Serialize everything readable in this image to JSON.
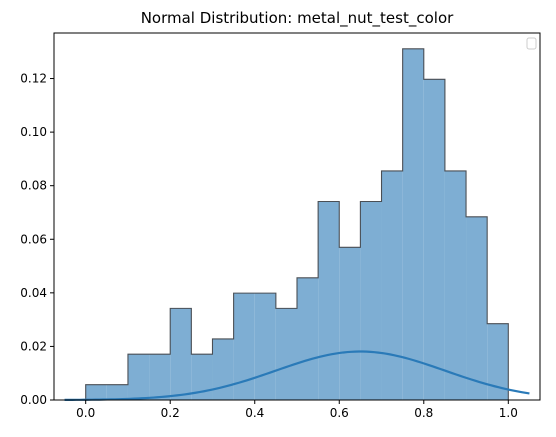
{
  "chart_data": {
    "type": "histogram",
    "title": "Normal Distribution: metal_nut_test_color",
    "xlabel": "",
    "ylabel": "",
    "xlim": [
      -0.075,
      1.075
    ],
    "ylim": [
      0,
      0.137
    ],
    "x_ticks": [
      "0.0",
      "0.2",
      "0.4",
      "0.6",
      "0.8",
      "1.0"
    ],
    "x_tick_values": [
      0.0,
      0.2,
      0.4,
      0.6,
      0.8,
      1.0
    ],
    "y_ticks": [
      "0.00",
      "0.02",
      "0.04",
      "0.06",
      "0.08",
      "0.10",
      "0.12"
    ],
    "y_tick_values": [
      0.0,
      0.02,
      0.04,
      0.06,
      0.08,
      0.1,
      0.12
    ],
    "histogram": {
      "bin_edges": [
        0.0,
        0.05,
        0.1,
        0.15,
        0.2,
        0.25,
        0.3,
        0.35,
        0.4,
        0.45,
        0.5,
        0.55,
        0.6,
        0.65,
        0.7,
        0.75,
        0.8,
        0.85,
        0.9,
        0.95,
        1.0
      ],
      "values": [
        0.0057,
        0.0057,
        0.0171,
        0.0171,
        0.0342,
        0.0171,
        0.0228,
        0.0399,
        0.0399,
        0.0342,
        0.0456,
        0.0741,
        0.057,
        0.0741,
        0.0855,
        0.1311,
        0.1197,
        0.0855,
        0.0684,
        0.0285
      ],
      "fill": "#7eaed3",
      "edge": "#4a4f55"
    },
    "curve": {
      "type": "normal_pdf",
      "mean": 0.65,
      "peak": 0.0181,
      "sigma": 0.2,
      "x_range": [
        -0.05,
        1.05
      ],
      "color": "#2a7ab8"
    },
    "legend": {
      "placement": "upper-right",
      "entries": []
    },
    "grid": false
  }
}
